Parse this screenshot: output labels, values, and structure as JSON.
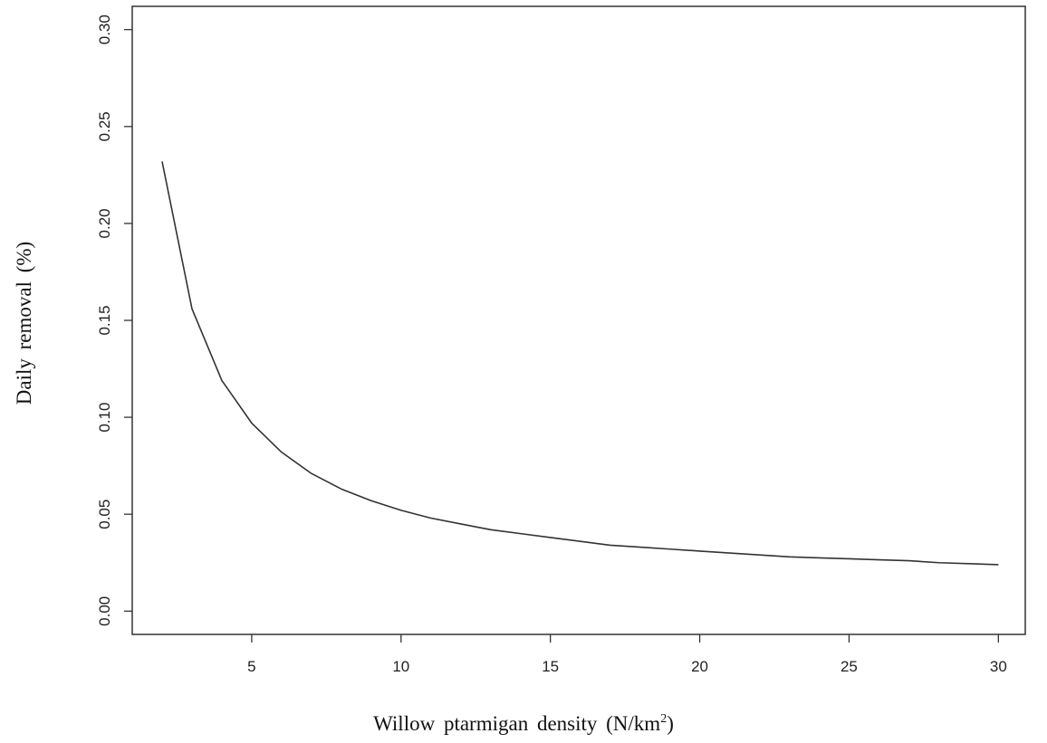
{
  "chart_data": {
    "type": "line",
    "title": "",
    "xlabel": {
      "main": "Willow ptarmigan density (N/km",
      "sup": "2",
      "end": ")"
    },
    "ylabel": "Daily removal (%)",
    "xlim": [
      1.0,
      30.9
    ],
    "ylim": [
      -0.012,
      0.312
    ],
    "xticks": [
      5,
      10,
      15,
      20,
      25,
      30
    ],
    "yticks": [
      0.0,
      0.05,
      0.1,
      0.15,
      0.2,
      0.25,
      0.3
    ],
    "xtick_labels": [
      "5",
      "10",
      "15",
      "20",
      "25",
      "30"
    ],
    "ytick_labels": [
      "0.00",
      "0.05",
      "0.10",
      "0.15",
      "0.20",
      "0.25",
      "0.30"
    ],
    "grid": false,
    "legend": "none",
    "line_color": "#333333",
    "series": [
      {
        "x": [
          2,
          3,
          4,
          5,
          6,
          7,
          8,
          9,
          10,
          11,
          12,
          13,
          14,
          15,
          16,
          17,
          18,
          19,
          20,
          21,
          22,
          23,
          24,
          25,
          26,
          27,
          28,
          29,
          30
        ],
        "values": [
          0.232,
          0.156,
          0.119,
          0.097,
          0.082,
          0.071,
          0.063,
          0.057,
          0.052,
          0.048,
          0.045,
          0.042,
          0.04,
          0.038,
          0.036,
          0.034,
          0.033,
          0.032,
          0.031,
          0.03,
          0.029,
          0.028,
          0.0275,
          0.027,
          0.0265,
          0.026,
          0.025,
          0.0245,
          0.024
        ]
      }
    ]
  }
}
